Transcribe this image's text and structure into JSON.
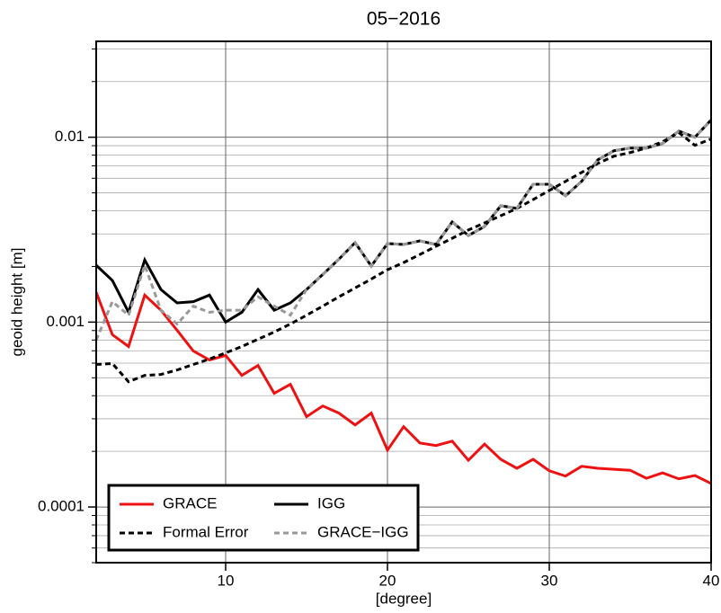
{
  "chart_data": {
    "type": "line",
    "title": "05−2016",
    "xlabel": "[degree]",
    "ylabel": "geoid height [m]",
    "log_y": true,
    "grid": true,
    "legend": "bottom-left",
    "xlim": [
      2,
      40
    ],
    "xticks": [
      10,
      20,
      30,
      40
    ],
    "ylim": [
      5e-05,
      0.033
    ],
    "yticks": [
      0.0001,
      0.001,
      0.01
    ],
    "yminorticks": [
      5e-05,
      6e-05,
      7e-05,
      8e-05,
      9e-05,
      0.0002,
      0.0003,
      0.0004,
      0.0005,
      0.0006,
      0.0007,
      0.0008,
      0.0009,
      0.002,
      0.003,
      0.004,
      0.005,
      0.006,
      0.007,
      0.008,
      0.009,
      0.02,
      0.03
    ],
    "x": [
      2,
      3,
      4,
      5,
      6,
      7,
      8,
      9,
      10,
      11,
      12,
      13,
      14,
      15,
      16,
      17,
      18,
      19,
      20,
      21,
      22,
      23,
      24,
      25,
      26,
      27,
      28,
      29,
      30,
      31,
      32,
      33,
      34,
      35,
      36,
      37,
      38,
      39,
      40
    ],
    "series": [
      {
        "name": "GRACE",
        "color": "#ee1111",
        "dash": "solid",
        "values": [
          0.00145,
          0.000855,
          0.000738,
          0.0014,
          0.00116,
          0.000904,
          0.000698,
          0.000624,
          0.00066,
          0.000515,
          0.000583,
          0.000412,
          0.000461,
          0.000308,
          0.000352,
          0.000322,
          0.000278,
          0.000322,
          0.000203,
          0.000272,
          0.000222,
          0.000215,
          0.000227,
          0.000179,
          0.000219,
          0.000181,
          0.000162,
          0.000181,
          0.000157,
          0.000147,
          0.000166,
          0.000162,
          0.00016,
          0.000158,
          0.000143,
          0.000153,
          0.000142,
          0.000148,
          0.000134
        ]
      },
      {
        "name": "IGG",
        "color": "#000000",
        "dash": "solid",
        "values": [
          0.00203,
          0.00168,
          0.00113,
          0.00217,
          0.0015,
          0.00127,
          0.00129,
          0.0014,
          0.001,
          0.00113,
          0.0015,
          0.00116,
          0.00127,
          0.0015,
          0.00181,
          0.00219,
          0.00269,
          0.00201,
          0.00266,
          0.00263,
          0.00275,
          0.00263,
          0.00348,
          0.00294,
          0.00329,
          0.00426,
          0.00412,
          0.00557,
          0.00557,
          0.00482,
          0.00577,
          0.00755,
          0.00845,
          0.00874,
          0.00874,
          0.00925,
          0.0108,
          0.01,
          0.0124
        ]
      },
      {
        "name": "Formal Error",
        "color": "#000000",
        "dash": "dashed",
        "values": [
          0.00059,
          0.000597,
          0.000476,
          0.000515,
          0.000521,
          0.000551,
          0.00059,
          0.000631,
          0.000682,
          0.000738,
          0.000808,
          0.000884,
          0.000977,
          0.00109,
          0.00122,
          0.00137,
          0.00153,
          0.00171,
          0.00192,
          0.0021,
          0.00232,
          0.00257,
          0.00284,
          0.00315,
          0.00344,
          0.00376,
          0.00412,
          0.0046,
          0.00515,
          0.00577,
          0.00645,
          0.00722,
          0.0079,
          0.00826,
          0.00874,
          0.00945,
          0.0106,
          0.00904,
          0.00978
        ]
      },
      {
        "name": "GRACE−IGG",
        "color": "#999999",
        "dash": "dashed",
        "values": [
          0.000799,
          0.00129,
          0.00109,
          0.00203,
          0.00116,
          0.000977,
          0.00122,
          0.00113,
          0.00116,
          0.00116,
          0.00137,
          0.00122,
          0.00109,
          0.0015,
          0.00181,
          0.00219,
          0.00269,
          0.00201,
          0.00266,
          0.00263,
          0.00275,
          0.00263,
          0.00348,
          0.00294,
          0.00329,
          0.00426,
          0.00412,
          0.00557,
          0.00557,
          0.00482,
          0.00577,
          0.00755,
          0.00845,
          0.00874,
          0.00874,
          0.00925,
          0.0108,
          0.01,
          0.0124
        ]
      }
    ]
  }
}
